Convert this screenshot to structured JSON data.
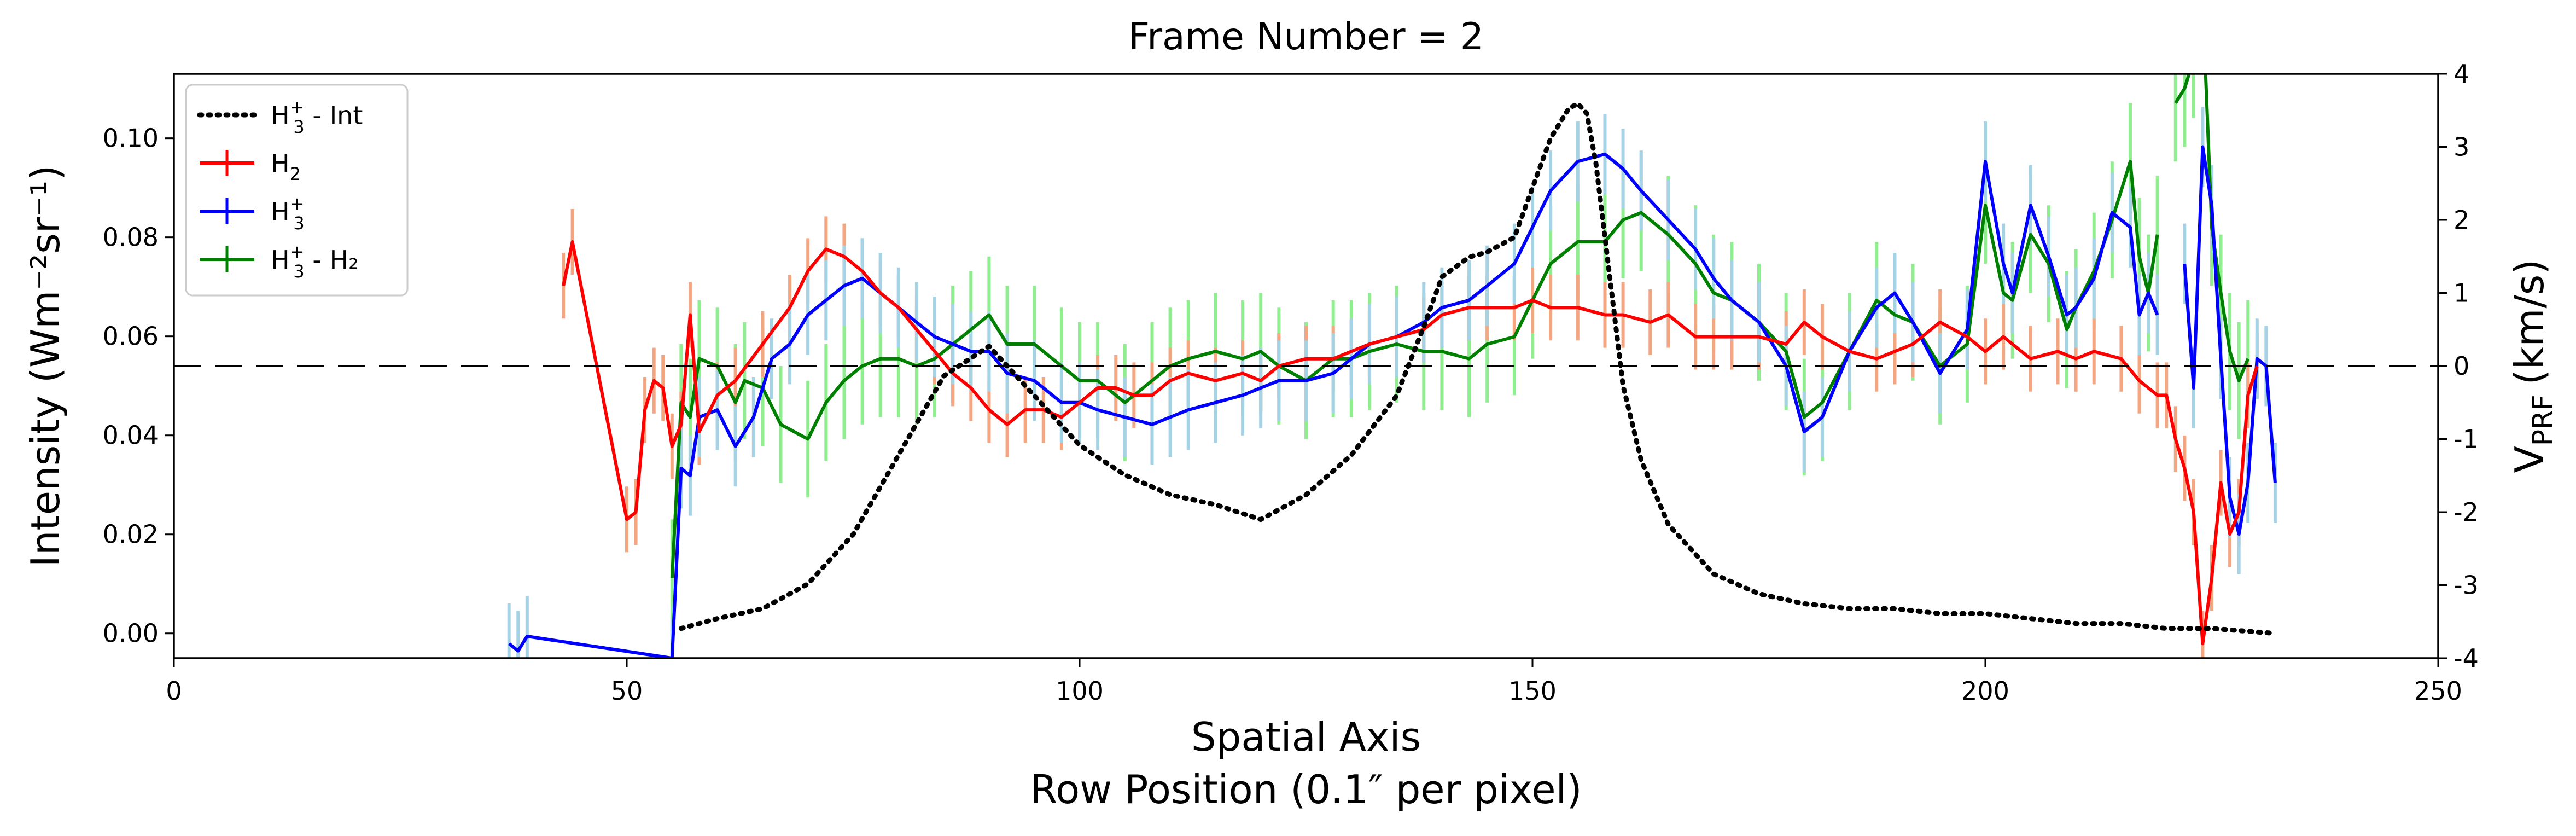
{
  "chart_data": {
    "type": "line",
    "title": "Frame Number = 2",
    "xlabel": "Spatial Axis",
    "xlabel2": "Row Position (0.1″ per pixel)",
    "ylabel_left": "Intensity (Wm⁻²sr⁻¹)",
    "ylabel_right": "Vₚᵣₒ (km/s)",
    "ylabel_right_main": "V",
    "ylabel_right_sub": "PRF",
    "ylabel_right_unit": "(km/s)",
    "xlim": [
      0,
      250
    ],
    "ylim_left": [
      -0.005,
      0.113
    ],
    "ylim_right": [
      -4,
      4
    ],
    "x_ticks": [
      "0",
      "50",
      "100",
      "150",
      "200",
      "250"
    ],
    "y_left_ticks": [
      "0.00",
      "0.02",
      "0.04",
      "0.06",
      "0.08",
      "0.10"
    ],
    "y_right_ticks": [
      "-4",
      "-3",
      "-2",
      "-1",
      "0",
      "1",
      "2",
      "3",
      "4"
    ],
    "grid": false,
    "legend_position": "top-left",
    "legend": [
      {
        "base": "H",
        "sub": "3",
        "sup": "+",
        "suffix": " - Int",
        "color": "#000000",
        "style": "dotted"
      },
      {
        "base": "H",
        "sub": "2",
        "sup": "",
        "suffix": "",
        "color": "#ff0000",
        "style": "solid"
      },
      {
        "base": "H",
        "sub": "3",
        "sup": "+",
        "suffix": "",
        "color": "#0000ff",
        "style": "solid"
      },
      {
        "base": "H",
        "sub": "3",
        "sup": "+",
        "suffix": " - H₂",
        "color": "#008000",
        "style": "solid"
      }
    ],
    "zero_line_right_axis": 0,
    "series": [
      {
        "name": "H3+ - Int",
        "axis": "left",
        "color": "#000000",
        "style": "dotted",
        "x": [
          56,
          60,
          65,
          70,
          75,
          80,
          85,
          90,
          95,
          100,
          105,
          110,
          115,
          120,
          125,
          130,
          135,
          138,
          140,
          143,
          145,
          148,
          150,
          152,
          154,
          155,
          156,
          157,
          158,
          160,
          162,
          165,
          170,
          175,
          180,
          185,
          190,
          195,
          200,
          205,
          210,
          215,
          220,
          225,
          232
        ],
        "y": [
          0.001,
          0.003,
          0.005,
          0.01,
          0.02,
          0.036,
          0.052,
          0.058,
          0.048,
          0.038,
          0.032,
          0.028,
          0.026,
          0.023,
          0.028,
          0.036,
          0.048,
          0.062,
          0.072,
          0.076,
          0.077,
          0.08,
          0.09,
          0.1,
          0.106,
          0.107,
          0.105,
          0.095,
          0.08,
          0.05,
          0.035,
          0.022,
          0.012,
          0.008,
          0.006,
          0.005,
          0.005,
          0.004,
          0.004,
          0.003,
          0.002,
          0.002,
          0.001,
          0.001,
          0.0
        ]
      },
      {
        "name": "H2",
        "axis": "right",
        "color": "#ff0000",
        "x": [
          43,
          44,
          50,
          51,
          52,
          53,
          54,
          55,
          56,
          57,
          58,
          60,
          62,
          65,
          68,
          70,
          72,
          74,
          76,
          78,
          80,
          82,
          84,
          86,
          88,
          90,
          92,
          94,
          96,
          98,
          100,
          102,
          104,
          106,
          108,
          110,
          112,
          115,
          118,
          120,
          122,
          125,
          128,
          130,
          132,
          135,
          138,
          140,
          143,
          145,
          148,
          150,
          152,
          155,
          158,
          160,
          163,
          165,
          168,
          170,
          172,
          175,
          178,
          180,
          182,
          185,
          188,
          190,
          192,
          195,
          198,
          200,
          202,
          205,
          208,
          210,
          212,
          215,
          217,
          219,
          220,
          221,
          222,
          223,
          224,
          225,
          226,
          227,
          228,
          229,
          230
        ],
        "y": [
          1.1,
          1.7,
          -2.1,
          -2.0,
          -0.6,
          -0.2,
          -0.3,
          -1.1,
          -0.8,
          0.7,
          -0.9,
          -0.4,
          -0.2,
          0.3,
          0.8,
          1.3,
          1.6,
          1.5,
          1.3,
          1.0,
          0.8,
          0.5,
          0.2,
          -0.1,
          -0.3,
          -0.6,
          -0.8,
          -0.6,
          -0.6,
          -0.7,
          -0.5,
          -0.3,
          -0.3,
          -0.4,
          -0.4,
          -0.2,
          -0.1,
          -0.2,
          -0.1,
          -0.2,
          0.0,
          0.1,
          0.1,
          0.2,
          0.3,
          0.4,
          0.5,
          0.7,
          0.8,
          0.8,
          0.8,
          0.9,
          0.8,
          0.8,
          0.7,
          0.7,
          0.6,
          0.7,
          0.4,
          0.4,
          0.4,
          0.4,
          0.3,
          0.6,
          0.4,
          0.2,
          0.1,
          0.2,
          0.3,
          0.6,
          0.4,
          0.2,
          0.4,
          0.1,
          0.2,
          0.1,
          0.2,
          0.1,
          -0.2,
          -0.4,
          -0.4,
          -1.0,
          -1.4,
          -2.0,
          -3.8,
          -2.9,
          -1.6,
          -2.3,
          -2.0,
          -0.4,
          0.0
        ]
      },
      {
        "name": "H3+",
        "axis": "right",
        "color": "#0000ff",
        "x": [
          37,
          38,
          39,
          55,
          56,
          57,
          58,
          60,
          62,
          64,
          66,
          68,
          70,
          72,
          74,
          76,
          78,
          80,
          82,
          84,
          86,
          88,
          90,
          92,
          95,
          98,
          100,
          102,
          105,
          108,
          110,
          112,
          115,
          118,
          120,
          122,
          125,
          128,
          130,
          132,
          135,
          138,
          140,
          143,
          145,
          148,
          150,
          152,
          155,
          158,
          160,
          162,
          165,
          168,
          170,
          172,
          175,
          178,
          180,
          182,
          185,
          188,
          190,
          192,
          195,
          198,
          200,
          202,
          203,
          205,
          207,
          209,
          210,
          212,
          214,
          216,
          217,
          218,
          219,
          220,
          221,
          222,
          223,
          224,
          225,
          226,
          227,
          228,
          229,
          230,
          231,
          232
        ],
        "y": [
          -3.8,
          -3.9,
          -3.7,
          -4.0,
          -1.4,
          -1.5,
          -0.7,
          -0.6,
          -1.1,
          -0.7,
          0.1,
          0.3,
          0.7,
          0.9,
          1.1,
          1.2,
          1.0,
          0.8,
          0.6,
          0.4,
          0.3,
          0.2,
          0.2,
          -0.1,
          -0.2,
          -0.5,
          -0.5,
          -0.6,
          -0.7,
          -0.8,
          -0.7,
          -0.6,
          -0.5,
          -0.4,
          -0.3,
          -0.2,
          -0.2,
          -0.1,
          0.1,
          0.3,
          0.4,
          0.6,
          0.8,
          0.9,
          1.1,
          1.4,
          1.9,
          2.4,
          2.8,
          2.9,
          2.7,
          2.4,
          2.0,
          1.6,
          1.2,
          0.9,
          0.6,
          0.0,
          -0.9,
          -0.7,
          0.2,
          0.8,
          1.0,
          0.6,
          -0.1,
          0.5,
          2.8,
          1.4,
          1.0,
          2.2,
          1.5,
          0.7,
          0.8,
          1.2,
          2.1,
          1.9,
          0.7,
          1.0,
          0.7,
          null,
          null,
          1.4,
          -0.3,
          3.0,
          2.2,
          0.1,
          -1.8,
          -2.3,
          -1.6,
          0.1,
          0.0,
          -1.6
        ]
      },
      {
        "name": "H3+ - H2",
        "axis": "right",
        "color": "#008000",
        "x": [
          55,
          56,
          57,
          58,
          60,
          62,
          63,
          65,
          67,
          70,
          72,
          74,
          76,
          78,
          80,
          82,
          84,
          86,
          88,
          90,
          92,
          95,
          98,
          100,
          102,
          105,
          108,
          110,
          112,
          115,
          118,
          120,
          122,
          125,
          128,
          130,
          132,
          135,
          138,
          140,
          143,
          145,
          148,
          150,
          152,
          155,
          158,
          160,
          162,
          165,
          168,
          170,
          172,
          175,
          178,
          180,
          182,
          185,
          188,
          190,
          192,
          195,
          198,
          200,
          202,
          203,
          205,
          207,
          209,
          210,
          212,
          214,
          216,
          217,
          218,
          219,
          220,
          221,
          222,
          223,
          224,
          225,
          226,
          227,
          228,
          229
        ],
        "y": [
          -2.9,
          -0.5,
          -0.7,
          0.1,
          0.0,
          -0.5,
          -0.2,
          -0.3,
          -0.8,
          -1.0,
          -0.5,
          -0.2,
          0.0,
          0.1,
          0.1,
          0.0,
          0.1,
          0.3,
          0.5,
          0.7,
          0.3,
          0.3,
          0.0,
          -0.2,
          -0.2,
          -0.5,
          -0.2,
          0.0,
          0.1,
          0.2,
          0.1,
          0.2,
          0.0,
          -0.2,
          0.1,
          0.1,
          0.2,
          0.3,
          0.2,
          0.2,
          0.1,
          0.3,
          0.4,
          0.9,
          1.4,
          1.7,
          1.7,
          2.0,
          2.1,
          1.8,
          1.4,
          1.0,
          0.9,
          0.6,
          0.2,
          -0.7,
          -0.5,
          0.2,
          0.9,
          0.7,
          0.6,
          0.0,
          0.3,
          2.2,
          1.0,
          0.9,
          1.8,
          1.4,
          0.5,
          0.8,
          1.3,
          2.0,
          2.8,
          1.5,
          1.0,
          1.8,
          null,
          3.6,
          3.8,
          4.2,
          5.0,
          1.9,
          1.0,
          0.2,
          -0.2,
          0.1
        ]
      }
    ]
  }
}
